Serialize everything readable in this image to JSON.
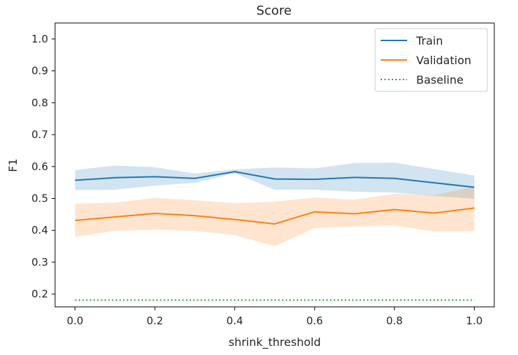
{
  "chart_data": {
    "type": "line",
    "title": "Score",
    "xlabel": "shrink_threshold",
    "ylabel": "F1",
    "xlim": [
      -0.05,
      1.05
    ],
    "ylim": [
      0.16,
      1.05
    ],
    "x_ticks": [
      0.0,
      0.2,
      0.4,
      0.6,
      0.8,
      1.0
    ],
    "x_tick_labels": [
      "0.0",
      "0.2",
      "0.4",
      "0.6",
      "0.8",
      "1.0"
    ],
    "y_ticks": [
      0.2,
      0.3,
      0.4,
      0.5,
      0.6,
      0.7,
      0.8,
      0.9,
      1.0
    ],
    "y_tick_labels": [
      "0.2",
      "0.3",
      "0.4",
      "0.5",
      "0.6",
      "0.7",
      "0.8",
      "0.9",
      "1.0"
    ],
    "grid": false,
    "legend_position": "top-right",
    "x": [
      0.0,
      0.1,
      0.2,
      0.3,
      0.4,
      0.5,
      0.6,
      0.7,
      0.8,
      0.9,
      1.0
    ],
    "series": [
      {
        "name": "Train",
        "color": "#1f77b4",
        "style": "solid",
        "values": [
          0.557,
          0.565,
          0.568,
          0.563,
          0.584,
          0.561,
          0.56,
          0.566,
          0.563,
          0.549,
          0.535
        ],
        "band_upper": [
          0.589,
          0.603,
          0.598,
          0.578,
          0.591,
          0.597,
          0.594,
          0.611,
          0.612,
          0.592,
          0.572
        ],
        "band_lower": [
          0.526,
          0.527,
          0.54,
          0.549,
          0.579,
          0.527,
          0.527,
          0.521,
          0.518,
          0.508,
          0.499
        ]
      },
      {
        "name": "Validation",
        "color": "#ff7f0e",
        "style": "solid",
        "values": [
          0.431,
          0.442,
          0.453,
          0.446,
          0.434,
          0.42,
          0.458,
          0.452,
          0.465,
          0.454,
          0.47
        ],
        "band_upper": [
          0.484,
          0.487,
          0.502,
          0.494,
          0.485,
          0.49,
          0.503,
          0.496,
          0.515,
          0.51,
          0.537
        ],
        "band_lower": [
          0.379,
          0.399,
          0.402,
          0.398,
          0.385,
          0.35,
          0.407,
          0.412,
          0.415,
          0.396,
          0.397
        ]
      },
      {
        "name": "Baseline",
        "color": "#2ca02c",
        "style": "dotted",
        "values": [
          0.181,
          0.181,
          0.181,
          0.181,
          0.181,
          0.181,
          0.181,
          0.181,
          0.181,
          0.181,
          0.181
        ]
      }
    ]
  }
}
